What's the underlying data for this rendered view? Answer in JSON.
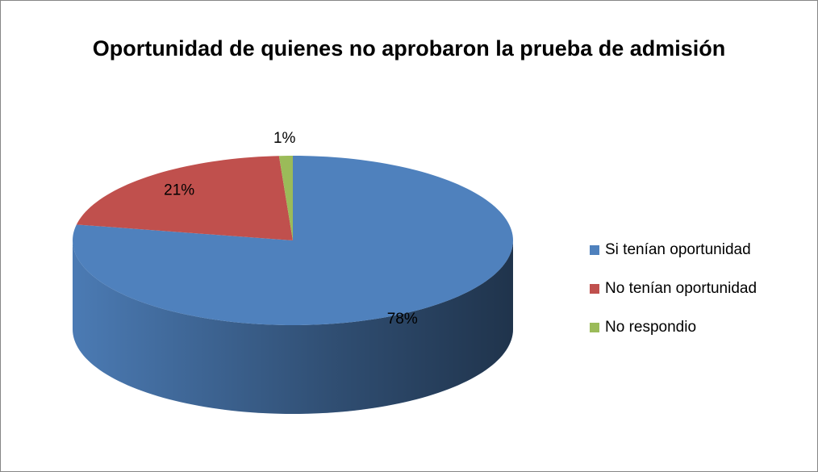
{
  "chart_data": {
    "type": "pie",
    "title": "Oportunidad de quienes no aprobaron la prueba de admisión",
    "categories": [
      "Si tenían oportunidad",
      "No tenían oportunidad",
      "No respondio"
    ],
    "values": [
      78,
      21,
      1
    ],
    "value_labels": [
      "78%",
      "21%",
      "1%"
    ],
    "colors": [
      "#4f81bd",
      "#c0504d",
      "#9bbb59"
    ],
    "legend": "right"
  }
}
